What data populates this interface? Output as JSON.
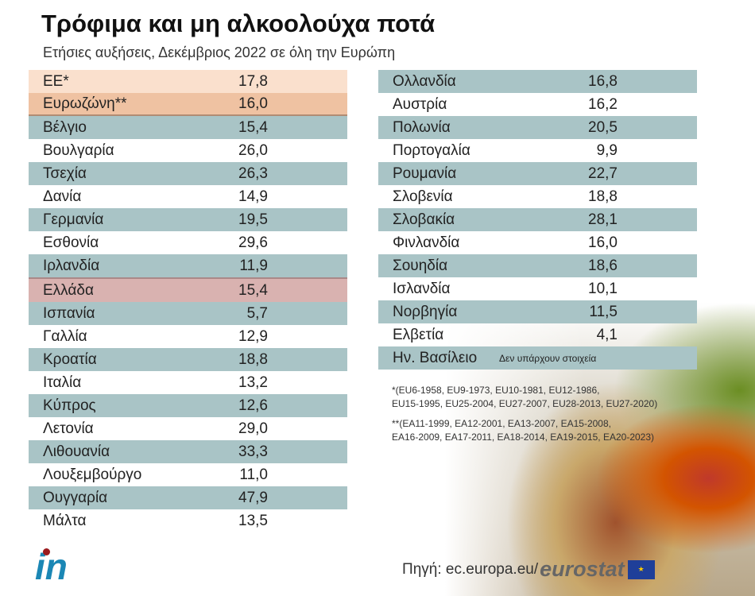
{
  "title": "Τρόφιμα και μη αλκοολούχα ποτά",
  "subtitle": "Ετήσιες αυξήσεις, Δεκέμβριος 2022 σε όλη την Ευρώπη",
  "left": [
    [
      "ΕΕ*",
      "17,8"
    ],
    [
      "Ευρωζώνη**",
      "16,0"
    ],
    [
      "Βέλγιο",
      "15,4"
    ],
    [
      "Βουλγαρία",
      "26,0"
    ],
    [
      "Τσεχία",
      "26,3"
    ],
    [
      "Δανία",
      "14,9"
    ],
    [
      "Γερμανία",
      "19,5"
    ],
    [
      "Εσθονία",
      "29,6"
    ],
    [
      "Ιρλανδία",
      "11,9"
    ],
    [
      "Ελλάδα",
      "15,4"
    ],
    [
      "Ισπανία",
      "5,7"
    ],
    [
      "Γαλλία",
      "12,9"
    ],
    [
      "Κροατία",
      "18,8"
    ],
    [
      "Ιταλία",
      "13,2"
    ],
    [
      "Κύπρος",
      "12,6"
    ],
    [
      "Λετονία",
      "29,0"
    ],
    [
      "Λιθουανία",
      "33,3"
    ],
    [
      "Λουξεμβούργο",
      "11,0"
    ],
    [
      "Ουγγαρία",
      "47,9"
    ],
    [
      "Μάλτα",
      "13,5"
    ]
  ],
  "right": [
    [
      "Ολλανδία",
      "16,8"
    ],
    [
      "Αυστρία",
      "16,2"
    ],
    [
      "Πολωνία",
      "20,5"
    ],
    [
      "Πορτογαλία",
      "9,9"
    ],
    [
      "Ρουμανία",
      "22,7"
    ],
    [
      "Σλοβενία",
      "18,8"
    ],
    [
      "Σλοβακία",
      "28,1"
    ],
    [
      "Φινλανδία",
      "16,0"
    ],
    [
      "Σουηδία",
      "18,6"
    ],
    [
      "Ισλανδία",
      "10,1"
    ],
    [
      "Νορβηγία",
      "11,5"
    ],
    [
      "Ελβετία",
      "4,1"
    ]
  ],
  "uk": {
    "name": "Ην. Βασίλειο",
    "value": "Δεν υπάρχουν στοιχεία"
  },
  "notes": [
    "*(EU6-1958, EU9-1973, EU10-1981, EU12-1986,",
    "EU15-1995, EU25-2004, EU27-2007, EU28-2013, EU27-2020)",
    "**(EA11-1999, EA12-2001, EA13-2007, EA15-2008,",
    "EA16-2009, EA17-2011, EA18-2014, EA19-2015, EA20-2023)"
  ],
  "logo": "in",
  "source": {
    "label": "Πηγή:",
    "url": "ec.europa.eu/",
    "brand": "eurostat"
  }
}
